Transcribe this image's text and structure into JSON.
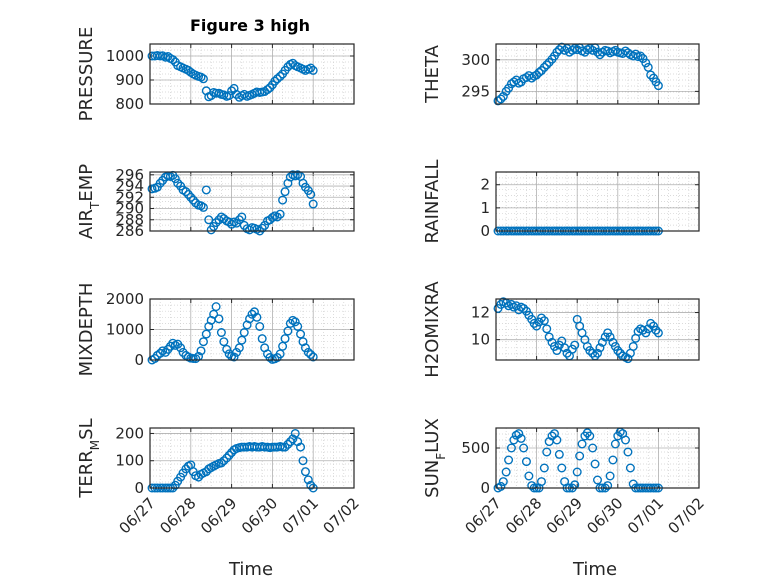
{
  "figure": {
    "title": "Figure 3 high",
    "xlabel": "Time",
    "marker_color": "#0072BD",
    "x_ticks": [
      "06/27",
      "06/28",
      "06/29",
      "06/30",
      "07/01",
      "07/02"
    ]
  },
  "chart_data": [
    {
      "type": "scatter",
      "ylabel": "PRESSURE",
      "ylim": [
        800,
        1050
      ],
      "yticks": [
        800,
        900,
        1000
      ],
      "xlim": [
        "06/27",
        "07/02"
      ],
      "grid": true,
      "x": [
        0.05,
        0.12,
        0.18,
        0.25,
        0.31,
        0.38,
        0.44,
        0.5,
        0.56,
        0.62,
        0.68,
        0.75,
        0.81,
        0.88,
        0.94,
        1.0,
        1.06,
        1.12,
        1.19,
        1.25,
        1.31,
        1.38,
        1.44,
        1.5,
        1.56,
        1.62,
        1.69,
        1.75,
        1.81,
        1.88,
        1.94,
        2.0,
        2.06,
        2.12,
        2.19,
        2.25,
        2.31,
        2.38,
        2.44,
        2.5,
        2.56,
        2.62,
        2.69,
        2.75,
        2.81,
        2.88,
        2.94,
        3.0,
        3.06,
        3.12,
        3.19,
        3.25,
        3.31,
        3.38,
        3.44,
        3.5,
        3.56,
        3.62,
        3.69,
        3.75,
        3.81,
        3.88,
        3.94,
        4.0
      ],
      "y": [
        1000,
        1000,
        1002,
        1000,
        1001,
        995,
        998,
        990,
        985,
        975,
        960,
        955,
        950,
        945,
        940,
        932,
        925,
        920,
        915,
        912,
        905,
        855,
        830,
        835,
        848,
        845,
        845,
        840,
        838,
        832,
        835,
        855,
        865,
        840,
        828,
        835,
        840,
        832,
        836,
        840,
        845,
        850,
        848,
        850,
        852,
        860,
        868,
        880,
        895,
        905,
        915,
        925,
        940,
        955,
        965,
        970,
        960,
        955,
        950,
        945,
        940,
        945,
        950,
        940
      ]
    },
    {
      "type": "scatter",
      "ylabel": "THETA",
      "ylim": [
        293,
        302.5
      ],
      "yticks": [
        295,
        300
      ],
      "xlim": [
        "06/27",
        "07/02"
      ],
      "grid": true,
      "x": [
        0.05,
        0.12,
        0.18,
        0.25,
        0.31,
        0.38,
        0.44,
        0.5,
        0.56,
        0.62,
        0.68,
        0.75,
        0.81,
        0.88,
        0.94,
        1.0,
        1.06,
        1.12,
        1.19,
        1.25,
        1.31,
        1.38,
        1.44,
        1.5,
        1.56,
        1.62,
        1.69,
        1.75,
        1.81,
        1.88,
        1.94,
        2.0,
        2.06,
        2.12,
        2.19,
        2.25,
        2.31,
        2.38,
        2.44,
        2.5,
        2.56,
        2.62,
        2.69,
        2.75,
        2.81,
        2.88,
        2.94,
        3.0,
        3.06,
        3.12,
        3.19,
        3.25,
        3.31,
        3.38,
        3.44,
        3.5,
        3.56,
        3.62,
        3.69,
        3.75,
        3.81,
        3.88,
        3.94,
        4.0
      ],
      "y": [
        293.5,
        293.8,
        294.2,
        295,
        295.5,
        296.2,
        296.5,
        296.8,
        296.3,
        296.5,
        297,
        297.2,
        297.5,
        297.1,
        297.4,
        297.6,
        298,
        298.3,
        298.8,
        299.2,
        299.6,
        300.1,
        300.6,
        301.2,
        301.6,
        302,
        301.5,
        301.8,
        301.2,
        301.5,
        301.8,
        301.6,
        301.9,
        301.4,
        301.2,
        301.6,
        301.8,
        301.5,
        301.9,
        301.2,
        300.8,
        301.2,
        301.5,
        301.4,
        301.1,
        301.3,
        301.5,
        301.2,
        301.1,
        301,
        301.4,
        301.1,
        300.8,
        300.6,
        300.9,
        300.5,
        300.6,
        300.2,
        299.5,
        298.8,
        297.6,
        297.1,
        296.5,
        295.9
      ]
    },
    {
      "type": "scatter",
      "ylabel": "AIR_TEMP",
      "ylim": [
        286,
        296.5
      ],
      "yticks": [
        286,
        288,
        290,
        292,
        294,
        296
      ],
      "xlim": [
        "06/27",
        "07/02"
      ],
      "grid": true,
      "x": [
        0.05,
        0.12,
        0.18,
        0.25,
        0.31,
        0.38,
        0.44,
        0.5,
        0.56,
        0.62,
        0.68,
        0.75,
        0.81,
        0.88,
        0.94,
        1.0,
        1.06,
        1.12,
        1.19,
        1.25,
        1.31,
        1.38,
        1.44,
        1.5,
        1.56,
        1.62,
        1.69,
        1.75,
        1.81,
        1.88,
        1.94,
        2.0,
        2.06,
        2.12,
        2.19,
        2.25,
        2.31,
        2.38,
        2.44,
        2.5,
        2.56,
        2.62,
        2.69,
        2.75,
        2.81,
        2.88,
        2.94,
        3.0,
        3.06,
        3.12,
        3.19,
        3.25,
        3.31,
        3.38,
        3.44,
        3.5,
        3.56,
        3.62,
        3.69,
        3.75,
        3.81,
        3.88,
        3.94,
        4.0
      ],
      "y": [
        293.5,
        293.6,
        293.8,
        294.5,
        295,
        295.6,
        295.8,
        295.7,
        295.9,
        295.3,
        294.5,
        294,
        293.3,
        293,
        292.5,
        292,
        291.5,
        291,
        290.6,
        290.5,
        290.2,
        293.3,
        288,
        286.2,
        286.8,
        287.5,
        288,
        288.5,
        288.2,
        287.8,
        287.6,
        287.2,
        287.6,
        287.4,
        288,
        288.5,
        287,
        286.4,
        286.2,
        286.6,
        286.5,
        286.3,
        286,
        286.5,
        287,
        287.8,
        288,
        288.4,
        288.7,
        288.5,
        289,
        291.5,
        293,
        294.5,
        295.6,
        296,
        295.8,
        296,
        295.7,
        294.5,
        293.8,
        293.2,
        292.5,
        290.8
      ]
    },
    {
      "type": "scatter",
      "ylabel": "RAINFALL",
      "ylim": [
        0,
        2.55
      ],
      "yticks": [
        0,
        1,
        2
      ],
      "xlim": [
        "06/27",
        "07/02"
      ],
      "grid": true,
      "x": [
        0.05,
        0.12,
        0.18,
        0.25,
        0.31,
        0.38,
        0.44,
        0.5,
        0.56,
        0.62,
        0.68,
        0.75,
        0.81,
        0.88,
        0.94,
        1.0,
        1.06,
        1.12,
        1.19,
        1.25,
        1.31,
        1.38,
        1.44,
        1.5,
        1.56,
        1.62,
        1.69,
        1.75,
        1.81,
        1.88,
        1.94,
        2.0,
        2.06,
        2.12,
        2.19,
        2.25,
        2.31,
        2.38,
        2.44,
        2.5,
        2.56,
        2.62,
        2.69,
        2.75,
        2.81,
        2.88,
        2.94,
        3.0,
        3.06,
        3.12,
        3.19,
        3.25,
        3.31,
        3.38,
        3.44,
        3.5,
        3.56,
        3.62,
        3.69,
        3.75,
        3.81,
        3.88,
        3.94,
        4.0
      ],
      "y": [
        0,
        0,
        0,
        0,
        0,
        0,
        0,
        0,
        0,
        0,
        0,
        0,
        0,
        0,
        0,
        0,
        0,
        0,
        0,
        0,
        0,
        0,
        0,
        0,
        0,
        0,
        0,
        0,
        0,
        0,
        0,
        0,
        0,
        0,
        0,
        0,
        0,
        0,
        0,
        0,
        0,
        0,
        0,
        0,
        0,
        0,
        0,
        0,
        0,
        0,
        0,
        0,
        0,
        0,
        0,
        0,
        0,
        0,
        0,
        0,
        0,
        0,
        0,
        0
      ]
    },
    {
      "type": "scatter",
      "ylabel": "MIXDEPTH",
      "ylim": [
        0,
        2000
      ],
      "yticks": [
        0,
        1000,
        2000
      ],
      "xlim": [
        "06/27",
        "07/02"
      ],
      "grid": true,
      "x": [
        0.05,
        0.12,
        0.18,
        0.25,
        0.31,
        0.38,
        0.44,
        0.5,
        0.56,
        0.62,
        0.68,
        0.75,
        0.81,
        0.88,
        0.94,
        1.0,
        1.06,
        1.12,
        1.19,
        1.25,
        1.31,
        1.38,
        1.44,
        1.5,
        1.56,
        1.62,
        1.69,
        1.75,
        1.81,
        1.88,
        1.94,
        2.0,
        2.06,
        2.12,
        2.19,
        2.25,
        2.31,
        2.38,
        2.44,
        2.5,
        2.56,
        2.62,
        2.69,
        2.75,
        2.81,
        2.88,
        2.94,
        3.0,
        3.06,
        3.12,
        3.19,
        3.25,
        3.31,
        3.38,
        3.44,
        3.5,
        3.56,
        3.62,
        3.69,
        3.75,
        3.81,
        3.88,
        3.94,
        4.0
      ],
      "y": [
        0,
        50,
        150,
        220,
        300,
        250,
        350,
        450,
        550,
        480,
        520,
        400,
        250,
        150,
        100,
        60,
        50,
        45,
        120,
        300,
        600,
        850,
        1100,
        1300,
        1500,
        1750,
        1350,
        900,
        600,
        350,
        200,
        120,
        100,
        250,
        400,
        650,
        900,
        1150,
        1350,
        1500,
        1580,
        1400,
        1100,
        700,
        400,
        200,
        80,
        20,
        40,
        80,
        200,
        450,
        700,
        950,
        1200,
        1300,
        1250,
        1100,
        850,
        600,
        400,
        250,
        180,
        100
      ]
    },
    {
      "type": "scatter",
      "ylabel": "H2OMIXRA",
      "ylim": [
        8.5,
        13
      ],
      "yticks": [
        10,
        12
      ],
      "xlim": [
        "06/27",
        "07/02"
      ],
      "grid": true,
      "x": [
        0.05,
        0.12,
        0.18,
        0.25,
        0.31,
        0.38,
        0.44,
        0.5,
        0.56,
        0.62,
        0.68,
        0.75,
        0.81,
        0.88,
        0.94,
        1.0,
        1.06,
        1.12,
        1.19,
        1.25,
        1.31,
        1.38,
        1.44,
        1.5,
        1.56,
        1.62,
        1.69,
        1.75,
        1.81,
        1.88,
        1.94,
        2.0,
        2.06,
        2.12,
        2.19,
        2.25,
        2.31,
        2.38,
        2.44,
        2.5,
        2.56,
        2.62,
        2.69,
        2.75,
        2.81,
        2.88,
        2.94,
        3.0,
        3.06,
        3.12,
        3.19,
        3.25,
        3.31,
        3.38,
        3.44,
        3.5,
        3.56,
        3.62,
        3.69,
        3.75,
        3.81,
        3.88,
        3.94,
        4.0
      ],
      "y": [
        12.3,
        12.6,
        12.8,
        12.7,
        12.5,
        12.6,
        12.4,
        12.5,
        12.2,
        12.4,
        12.3,
        12.1,
        11.8,
        11.5,
        11.2,
        11,
        11.3,
        11.6,
        11.4,
        10.8,
        10.2,
        9.8,
        9.5,
        9.2,
        9.6,
        9.9,
        9.4,
        9,
        8.8,
        9.3,
        9.6,
        11.5,
        11,
        10.5,
        10,
        9.5,
        9.2,
        9,
        8.8,
        9,
        9.4,
        9.8,
        10.2,
        10.5,
        10.2,
        9.8,
        9.5,
        9.2,
        9,
        8.8,
        8.7,
        8.6,
        9,
        9.5,
        10.1,
        10.6,
        10.8,
        10.7,
        10.5,
        10.8,
        11.2,
        11,
        10.7,
        10.5
      ]
    },
    {
      "type": "scatter",
      "ylabel": "TERR_MSL",
      "ylim": [
        0,
        220
      ],
      "yticks": [
        0,
        100,
        200
      ],
      "xlim": [
        "06/27",
        "07/02"
      ],
      "grid": true,
      "x": [
        0.05,
        0.12,
        0.18,
        0.25,
        0.31,
        0.38,
        0.44,
        0.5,
        0.56,
        0.62,
        0.68,
        0.75,
        0.81,
        0.88,
        0.94,
        1.0,
        1.06,
        1.12,
        1.19,
        1.25,
        1.31,
        1.38,
        1.44,
        1.5,
        1.56,
        1.62,
        1.69,
        1.75,
        1.81,
        1.88,
        1.94,
        2.0,
        2.06,
        2.12,
        2.19,
        2.25,
        2.31,
        2.38,
        2.44,
        2.5,
        2.56,
        2.62,
        2.69,
        2.75,
        2.81,
        2.88,
        2.94,
        3.0,
        3.06,
        3.12,
        3.19,
        3.25,
        3.31,
        3.38,
        3.44,
        3.5,
        3.56,
        3.62,
        3.69,
        3.75,
        3.81,
        3.88,
        3.94,
        4.0
      ],
      "y": [
        0,
        0,
        0,
        0,
        0,
        0,
        0,
        0,
        0,
        10,
        25,
        40,
        55,
        70,
        80,
        85,
        60,
        45,
        40,
        50,
        55,
        60,
        70,
        75,
        80,
        85,
        90,
        92,
        100,
        110,
        120,
        130,
        140,
        145,
        148,
        150,
        150,
        150,
        152,
        150,
        152,
        150,
        150,
        152,
        150,
        150,
        148,
        150,
        150,
        150,
        152,
        150,
        150,
        160,
        170,
        180,
        200,
        170,
        150,
        100,
        60,
        30,
        10,
        0
      ]
    },
    {
      "type": "scatter",
      "ylabel": "SUN_FLUX",
      "ylim": [
        0,
        750
      ],
      "yticks": [
        0,
        500
      ],
      "xlim": [
        "06/27",
        "07/02"
      ],
      "grid": true,
      "x": [
        0.05,
        0.12,
        0.18,
        0.25,
        0.31,
        0.38,
        0.44,
        0.5,
        0.56,
        0.62,
        0.68,
        0.75,
        0.81,
        0.88,
        0.94,
        1.0,
        1.06,
        1.12,
        1.19,
        1.25,
        1.31,
        1.38,
        1.44,
        1.5,
        1.56,
        1.62,
        1.69,
        1.75,
        1.81,
        1.88,
        1.94,
        2.0,
        2.06,
        2.12,
        2.19,
        2.25,
        2.31,
        2.38,
        2.44,
        2.5,
        2.56,
        2.62,
        2.69,
        2.75,
        2.81,
        2.88,
        2.94,
        3.0,
        3.06,
        3.12,
        3.19,
        3.25,
        3.31,
        3.38,
        3.44,
        3.5,
        3.56,
        3.62,
        3.69,
        3.75,
        3.81,
        3.88,
        3.94,
        4.0
      ],
      "y": [
        0,
        20,
        80,
        200,
        350,
        500,
        600,
        660,
        680,
        620,
        500,
        330,
        150,
        30,
        0,
        0,
        0,
        80,
        250,
        450,
        580,
        650,
        680,
        600,
        420,
        250,
        80,
        0,
        0,
        0,
        40,
        200,
        400,
        550,
        650,
        690,
        650,
        500,
        300,
        100,
        0,
        0,
        0,
        30,
        150,
        350,
        550,
        650,
        700,
        680,
        600,
        450,
        250,
        50,
        0,
        0,
        0,
        0,
        0,
        0,
        0,
        0,
        0,
        0
      ]
    }
  ]
}
